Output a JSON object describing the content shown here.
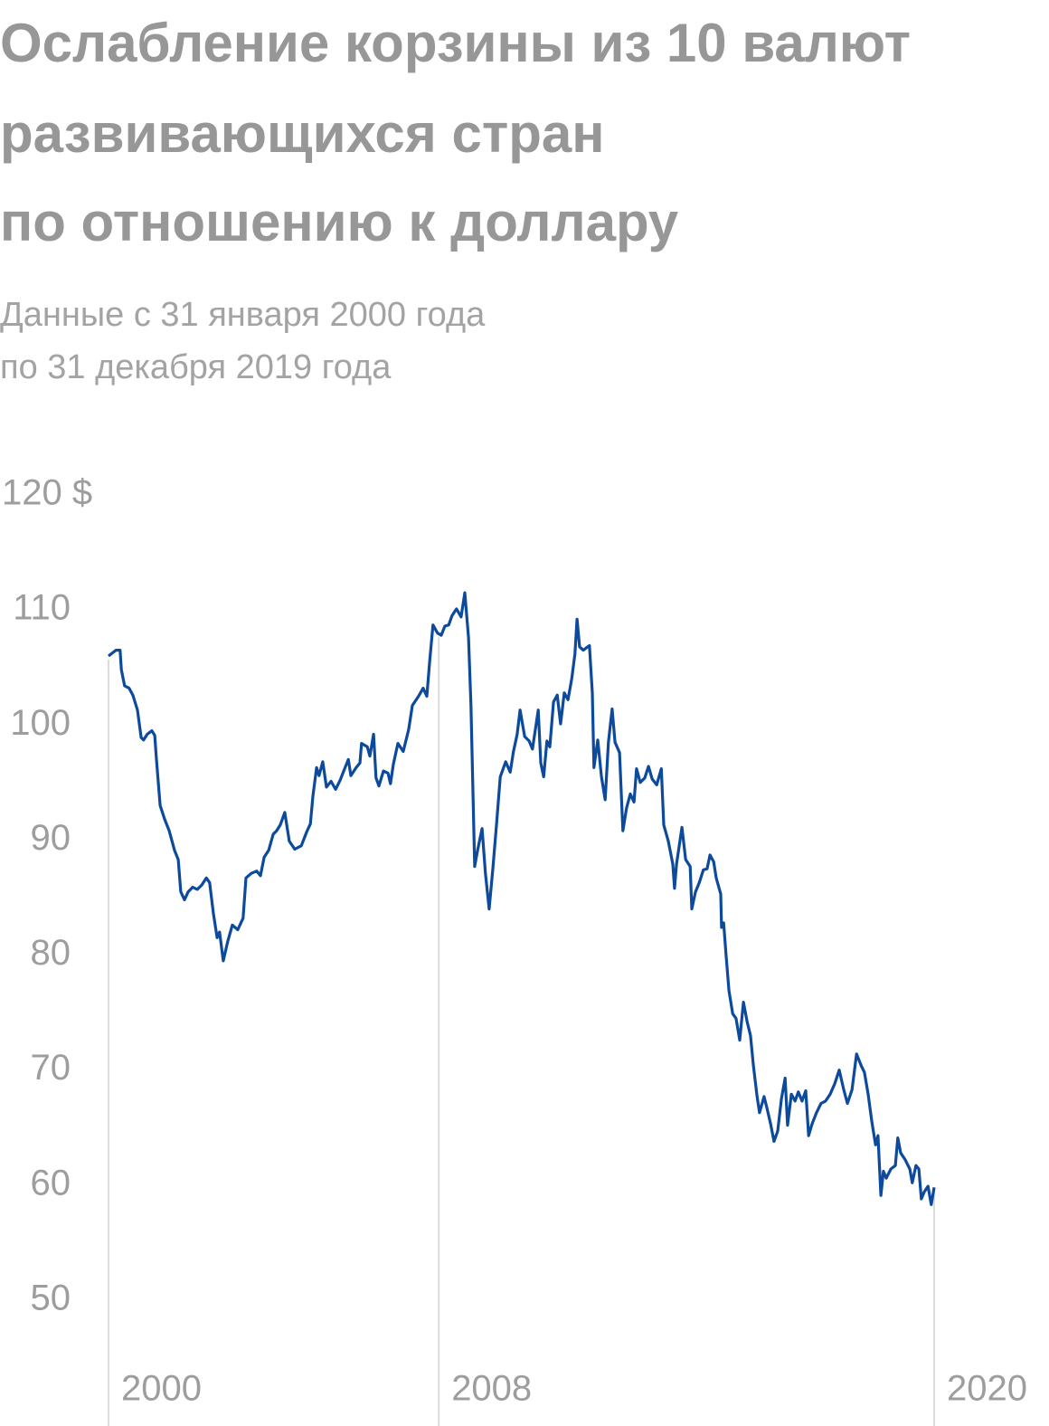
{
  "chart_data": {
    "type": "line",
    "title": [
      "Ослабление корзины из 10 валют",
      "развивающихся стран",
      "по отношению к доллару"
    ],
    "subtitle": [
      "Данные с 31 января 2000 года",
      "по 31 декабря 2019 года"
    ],
    "color": "#0d4a9c",
    "xlim": [
      2000,
      2020
    ],
    "xticks": [
      2000,
      2008,
      2020
    ],
    "ylim": [
      40,
      120
    ],
    "yticks": [
      {
        "value": 120,
        "label": "120 $"
      },
      110,
      100,
      90,
      80,
      70,
      60,
      50
    ],
    "x": [
      2000.0,
      2000.18,
      2000.28,
      2000.31,
      2000.39,
      2000.5,
      2000.59,
      2000.7,
      2000.79,
      2000.85,
      2000.94,
      2001.05,
      2001.12,
      2001.16,
      2001.25,
      2001.36,
      2001.47,
      2001.6,
      2001.69,
      2001.75,
      2001.84,
      2001.93,
      2002.04,
      2002.15,
      2002.26,
      2002.37,
      2002.45,
      2002.54,
      2002.63,
      2002.69,
      2002.78,
      2002.89,
      2003.0,
      2003.13,
      2003.26,
      2003.33,
      2003.46,
      2003.59,
      2003.68,
      2003.77,
      2003.88,
      2003.99,
      2004.07,
      2004.16,
      2004.27,
      2004.38,
      2004.51,
      2004.67,
      2004.8,
      2004.89,
      2004.95,
      2005.04,
      2005.1,
      2005.19,
      2005.28,
      2005.39,
      2005.5,
      2005.61,
      2005.72,
      2005.81,
      2005.87,
      2006.0,
      2006.09,
      2006.13,
      2006.27,
      2006.33,
      2006.42,
      2006.48,
      2006.55,
      2006.66,
      2006.77,
      2006.83,
      2006.9,
      2007.01,
      2007.14,
      2007.27,
      2007.36,
      2007.51,
      2007.62,
      2007.71,
      2007.78,
      2007.86,
      2007.97,
      2008.06,
      2008.15,
      2008.24,
      2008.32,
      2008.43,
      2008.54,
      2008.63,
      2008.72,
      2008.78,
      2008.87,
      2008.94,
      2009.05,
      2009.13,
      2009.22,
      2009.31,
      2009.4,
      2009.49,
      2009.62,
      2009.73,
      2009.81,
      2009.9,
      2009.97,
      2010.08,
      2010.19,
      2010.27,
      2010.41,
      2010.47,
      2010.54,
      2010.62,
      2010.69,
      2010.78,
      2010.87,
      2010.95,
      2011.04,
      2011.13,
      2011.22,
      2011.3,
      2011.35,
      2011.41,
      2011.5,
      2011.57,
      2011.65,
      2011.72,
      2011.76,
      2011.85,
      2011.94,
      2012.03,
      2012.11,
      2012.2,
      2012.27,
      2012.38,
      2012.46,
      2012.55,
      2012.64,
      2012.73,
      2012.79,
      2012.88,
      2012.99,
      2013.08,
      2013.17,
      2013.28,
      2013.39,
      2013.45,
      2013.56,
      2013.67,
      2013.71,
      2013.76,
      2013.89,
      2013.98,
      2014.09,
      2014.13,
      2014.22,
      2014.31,
      2014.41,
      2014.5,
      2014.57,
      2014.66,
      2014.72,
      2014.83,
      2014.85,
      2014.9,
      2014.96,
      2015.03,
      2015.12,
      2015.2,
      2015.29,
      2015.38,
      2015.47,
      2015.55,
      2015.62,
      2015.71,
      2015.77,
      2015.88,
      2015.95,
      2016.04,
      2016.12,
      2016.21,
      2016.3,
      2016.39,
      2016.45,
      2016.54,
      2016.63,
      2016.71,
      2016.8,
      2016.89,
      2016.96,
      2017.04,
      2017.15,
      2017.26,
      2017.37,
      2017.48,
      2017.59,
      2017.7,
      2017.81,
      2017.9,
      2018.01,
      2018.12,
      2018.23,
      2018.31,
      2018.4,
      2018.49,
      2018.58,
      2018.64,
      2018.71,
      2018.77,
      2018.84,
      2018.95,
      2019.06,
      2019.12,
      2019.19,
      2019.3,
      2019.41,
      2019.47,
      2019.56,
      2019.63,
      2019.69,
      2019.76,
      2019.85,
      2019.93,
      2020.0
    ],
    "values": [
      106.0,
      106.5,
      106.5,
      104.8,
      103.4,
      103.2,
      102.6,
      101.3,
      98.9,
      98.7,
      99.2,
      99.5,
      99.1,
      97.0,
      93.0,
      91.8,
      90.8,
      89.1,
      88.3,
      85.5,
      84.8,
      85.5,
      85.9,
      85.7,
      86.1,
      86.7,
      86.3,
      83.6,
      81.5,
      82.0,
      79.5,
      81.2,
      82.6,
      82.2,
      83.2,
      86.7,
      87.1,
      87.3,
      86.9,
      88.5,
      89.1,
      90.5,
      90.8,
      91.3,
      92.4,
      89.9,
      89.2,
      89.5,
      90.7,
      91.4,
      93.8,
      96.3,
      95.6,
      96.8,
      94.6,
      95.1,
      94.4,
      95.2,
      96.2,
      97.0,
      95.6,
      96.3,
      96.7,
      98.4,
      98.1,
      97.3,
      99.2,
      95.4,
      94.7,
      96.0,
      95.8,
      94.9,
      96.6,
      98.4,
      97.7,
      99.6,
      101.7,
      102.5,
      103.2,
      102.5,
      105.6,
      108.7,
      108.0,
      107.8,
      108.6,
      108.7,
      109.5,
      110.1,
      109.4,
      111.5,
      107.6,
      101.7,
      87.7,
      89.1,
      91.0,
      87.1,
      84.0,
      87.5,
      91.4,
      95.5,
      96.8,
      95.9,
      97.7,
      99.2,
      101.3,
      99.0,
      98.6,
      97.9,
      101.3,
      96.7,
      95.5,
      98.6,
      98.1,
      102.0,
      102.6,
      100.1,
      102.8,
      102.2,
      104.0,
      106.2,
      109.2,
      106.8,
      106.5,
      106.7,
      106.9,
      102.8,
      96.3,
      98.7,
      95.5,
      93.5,
      98.5,
      101.4,
      98.5,
      97.6,
      90.8,
      92.8,
      94.0,
      93.3,
      96.2,
      95.0,
      95.4,
      96.4,
      95.3,
      94.8,
      96.2,
      91.3,
      89.9,
      87.9,
      85.8,
      87.9,
      91.1,
      88.3,
      87.7,
      84.0,
      85.5,
      86.3,
      87.4,
      87.5,
      88.7,
      88.1,
      86.7,
      85.3,
      82.4,
      82.8,
      80.0,
      76.9,
      74.9,
      74.5,
      72.6,
      75.9,
      74.2,
      73.0,
      70.4,
      67.7,
      66.3,
      67.7,
      66.7,
      65.3,
      63.8,
      64.7,
      67.5,
      69.3,
      65.2,
      67.9,
      67.3,
      68.1,
      67.3,
      68.2,
      64.3,
      65.3,
      66.3,
      67.1,
      67.3,
      67.9,
      68.8,
      70.0,
      68.3,
      67.1,
      68.3,
      71.4,
      70.4,
      69.8,
      67.9,
      65.5,
      63.5,
      64.3,
      59.1,
      61.2,
      60.6,
      61.4,
      61.7,
      64.1,
      62.8,
      62.2,
      61.4,
      60.2,
      61.7,
      61.4,
      58.8,
      59.4,
      59.9,
      58.3,
      59.8
    ]
  }
}
